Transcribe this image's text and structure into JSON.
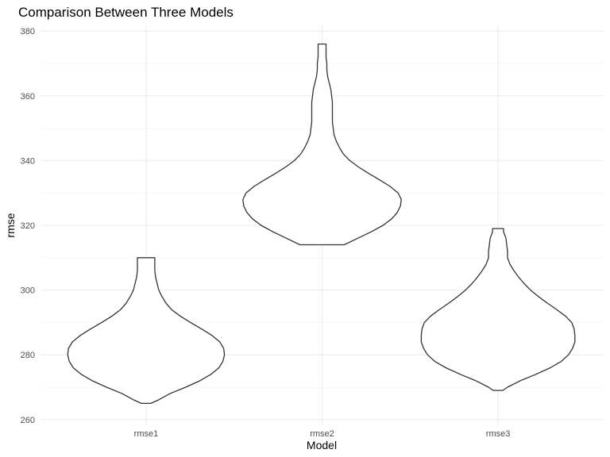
{
  "chart_data": {
    "type": "violin",
    "title": "Comparison Between Three Models",
    "xlabel": "Model",
    "ylabel": "rmse",
    "categories": [
      "rmse1",
      "rmse2",
      "rmse3"
    ],
    "ylim": [
      258,
      382
    ],
    "yticks": [
      260,
      280,
      300,
      320,
      340,
      360,
      380
    ],
    "y_minor": [
      270,
      290,
      310,
      330,
      350,
      370
    ],
    "grid": true,
    "violins": [
      {
        "category": "rmse1",
        "min": 265,
        "max": 310,
        "profile": [
          [
            265,
            0.06
          ],
          [
            266,
            0.15
          ],
          [
            268,
            0.3
          ],
          [
            270,
            0.5
          ],
          [
            272,
            0.68
          ],
          [
            274,
            0.82
          ],
          [
            276,
            0.92
          ],
          [
            278,
            0.97
          ],
          [
            280,
            0.99
          ],
          [
            282,
            0.98
          ],
          [
            284,
            0.93
          ],
          [
            286,
            0.83
          ],
          [
            288,
            0.7
          ],
          [
            290,
            0.56
          ],
          [
            292,
            0.43
          ],
          [
            294,
            0.32
          ],
          [
            296,
            0.25
          ],
          [
            298,
            0.2
          ],
          [
            300,
            0.16
          ],
          [
            302,
            0.14
          ],
          [
            304,
            0.12
          ],
          [
            306,
            0.11
          ],
          [
            308,
            0.11
          ],
          [
            310,
            0.11
          ]
        ]
      },
      {
        "category": "rmse2",
        "min": 314,
        "max": 376,
        "profile": [
          [
            314,
            0.28
          ],
          [
            316,
            0.45
          ],
          [
            318,
            0.62
          ],
          [
            320,
            0.77
          ],
          [
            322,
            0.88
          ],
          [
            324,
            0.95
          ],
          [
            326,
            0.99
          ],
          [
            328,
            1.0
          ],
          [
            330,
            0.96
          ],
          [
            332,
            0.86
          ],
          [
            334,
            0.73
          ],
          [
            336,
            0.59
          ],
          [
            338,
            0.46
          ],
          [
            340,
            0.35
          ],
          [
            342,
            0.27
          ],
          [
            344,
            0.22
          ],
          [
            346,
            0.18
          ],
          [
            348,
            0.15
          ],
          [
            350,
            0.14
          ],
          [
            352,
            0.13
          ],
          [
            354,
            0.13
          ],
          [
            356,
            0.13
          ],
          [
            358,
            0.13
          ],
          [
            360,
            0.12
          ],
          [
            362,
            0.11
          ],
          [
            364,
            0.09
          ],
          [
            366,
            0.07
          ],
          [
            368,
            0.06
          ],
          [
            370,
            0.06
          ],
          [
            372,
            0.05
          ],
          [
            374,
            0.05
          ],
          [
            376,
            0.05
          ]
        ]
      },
      {
        "category": "rmse3",
        "min": 269,
        "max": 319,
        "profile": [
          [
            269,
            0.06
          ],
          [
            270,
            0.12
          ],
          [
            272,
            0.28
          ],
          [
            274,
            0.48
          ],
          [
            276,
            0.66
          ],
          [
            278,
            0.8
          ],
          [
            280,
            0.89
          ],
          [
            282,
            0.94
          ],
          [
            284,
            0.97
          ],
          [
            286,
            0.97
          ],
          [
            288,
            0.96
          ],
          [
            290,
            0.93
          ],
          [
            292,
            0.85
          ],
          [
            294,
            0.74
          ],
          [
            296,
            0.62
          ],
          [
            298,
            0.51
          ],
          [
            300,
            0.41
          ],
          [
            302,
            0.33
          ],
          [
            304,
            0.26
          ],
          [
            306,
            0.2
          ],
          [
            308,
            0.15
          ],
          [
            310,
            0.12
          ],
          [
            312,
            0.12
          ],
          [
            314,
            0.11
          ],
          [
            316,
            0.1
          ],
          [
            318,
            0.07
          ],
          [
            319,
            0.07
          ]
        ]
      }
    ]
  }
}
